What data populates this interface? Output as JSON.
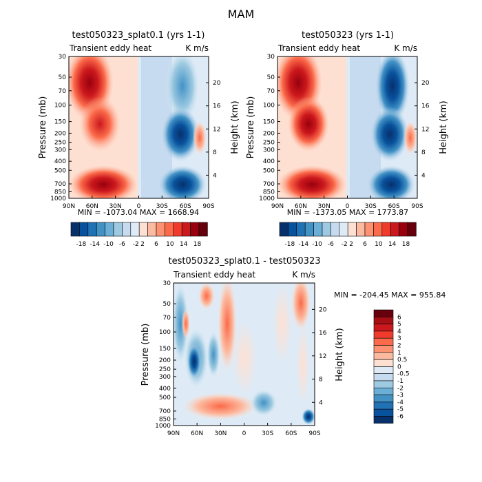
{
  "page": {
    "title": "MAM"
  },
  "chart_data": [
    {
      "type": "heatmap",
      "title": "test050323_splat0.1 (yrs 1-1)",
      "variable": "Transient eddy heat",
      "units": "K m/s",
      "xlabel": "",
      "ylabel": "Pressure (mb)",
      "ylabel_right": "Height (km)",
      "x_ticks": [
        "90N",
        "60N",
        "30N",
        "0",
        "30S",
        "60S",
        "90S"
      ],
      "y_ticks": [
        "30",
        "50",
        "70",
        "100",
        "150",
        "200",
        "250",
        "300",
        "400",
        "500",
        "700",
        "850",
        "1000"
      ],
      "y_right_ticks": [
        "20",
        "16",
        "12",
        "8",
        "4"
      ],
      "stats": "MIN = -1073.04   MAX = 1668.94",
      "colorbar_labels": [
        "-18",
        "-14",
        "-10",
        "-6",
        "-2",
        "2",
        "6",
        "10",
        "14",
        "18"
      ],
      "colorbar_orientation": "horizontal"
    },
    {
      "type": "heatmap",
      "title": "test050323 (yrs 1-1)",
      "variable": "Transient eddy heat",
      "units": "K m/s",
      "xlabel": "",
      "ylabel": "Pressure (mb)",
      "ylabel_right": "Height (km)",
      "x_ticks": [
        "90N",
        "60N",
        "30N",
        "0",
        "30S",
        "60S",
        "90S"
      ],
      "y_ticks": [
        "30",
        "50",
        "70",
        "100",
        "150",
        "200",
        "250",
        "300",
        "400",
        "500",
        "700",
        "850",
        "1000"
      ],
      "y_right_ticks": [
        "20",
        "16",
        "12",
        "8",
        "4"
      ],
      "stats": "MIN = -1373.05   MAX = 1773.87",
      "colorbar_labels": [
        "-18",
        "-14",
        "-10",
        "-6",
        "-2",
        "2",
        "6",
        "10",
        "14",
        "18"
      ],
      "colorbar_orientation": "horizontal"
    },
    {
      "type": "heatmap",
      "title": "test050323_splat0.1 - test050323",
      "variable": "Transient eddy heat",
      "units": "K m/s",
      "xlabel": "",
      "ylabel": "Pressure (mb)",
      "ylabel_right": "Height (km)",
      "x_ticks": [
        "90N",
        "60N",
        "30N",
        "0",
        "30S",
        "60S",
        "90S"
      ],
      "y_ticks": [
        "30",
        "50",
        "70",
        "100",
        "150",
        "200",
        "250",
        "300",
        "400",
        "500",
        "700",
        "850",
        "1000"
      ],
      "y_right_ticks": [
        "20",
        "16",
        "12",
        "8",
        "4"
      ],
      "stats": "MIN = -204.45   MAX = 955.84",
      "colorbar_labels": [
        "6",
        "5",
        "4",
        "3",
        "2",
        "1",
        "0.5",
        "0",
        "-0.5",
        "-1",
        "-2",
        "-3",
        "-4",
        "-5",
        "-6"
      ],
      "colorbar_orientation": "vertical"
    }
  ],
  "colors": {
    "scale": [
      "#08306b",
      "#08519c",
      "#2171b5",
      "#4292c6",
      "#6baed6",
      "#9ecae1",
      "#c6dbef",
      "#deebf7",
      "#fee0d2",
      "#fcbba1",
      "#fc9272",
      "#fb6a4a",
      "#ef3b2c",
      "#cb181d",
      "#99000d",
      "#67000d"
    ]
  }
}
